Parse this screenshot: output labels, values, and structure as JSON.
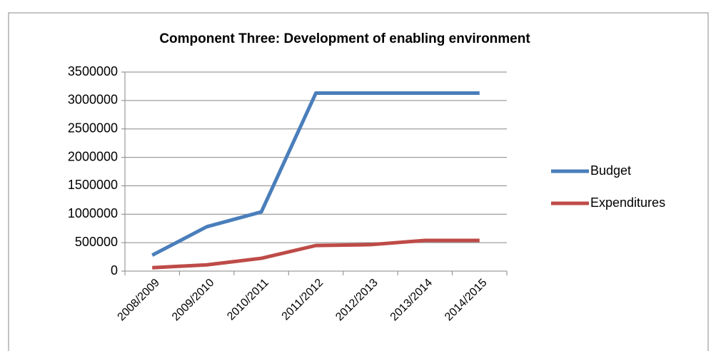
{
  "chart_data": {
    "type": "line",
    "title": "Component Three: Development of enabling environment",
    "categories": [
      "2008/2009",
      "2009/2010",
      "2010/2011",
      "2011/2012",
      "2012/2013",
      "2013/2014",
      "2014/2015"
    ],
    "series": [
      {
        "name": "Budget",
        "color": "#4a7ebb",
        "values": [
          280000,
          780000,
          1040000,
          3130000,
          3130000,
          3130000,
          3130000
        ]
      },
      {
        "name": "Expenditures",
        "color": "#be4b48",
        "values": [
          60000,
          110000,
          225000,
          450000,
          465000,
          540000,
          540000
        ]
      }
    ],
    "ylim": [
      0,
      3500000
    ],
    "yticks": [
      0,
      500000,
      1000000,
      1500000,
      2000000,
      2500000,
      3000000,
      3500000
    ],
    "grid": true,
    "legend": "right"
  }
}
